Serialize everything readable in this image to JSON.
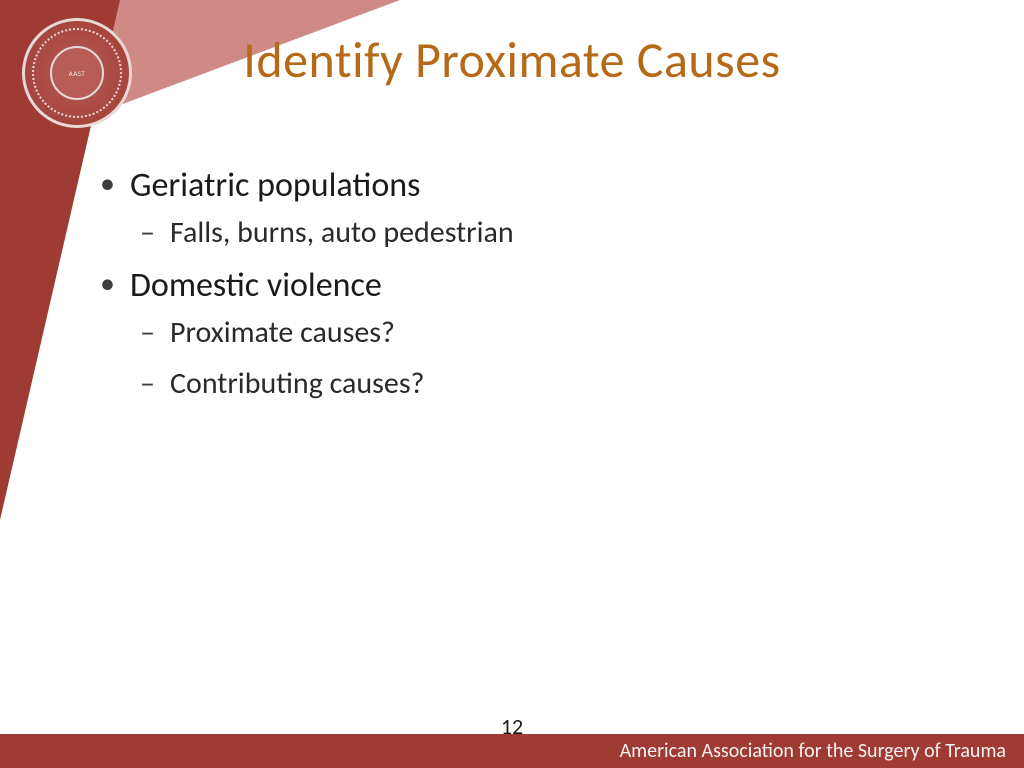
{
  "colors": {
    "background": "#ffffff",
    "title_color": "#b66a18",
    "body_text": "#1a1a1a",
    "bullet_color": "#3d3d3d",
    "triangle_light": "#cf8a85",
    "triangle_dark": "#9f3b33",
    "footer_bg": "#9f3b33",
    "footer_text": "#f6f1ef",
    "seal_border": "#e8d9d6",
    "seal_fill": "#b85d55"
  },
  "typography": {
    "title_fontsize": 50,
    "lvl1_fontsize": 34,
    "lvl2_fontsize": 30,
    "footer_fontsize": 20,
    "pagenum_fontsize": 22,
    "font_family": "Calibri"
  },
  "title": "Identify Proximate Causes",
  "bullets": [
    {
      "text": "Geriatric populations",
      "sub": [
        "Falls, burns, auto pedestrian"
      ]
    },
    {
      "text": "Domestic violence",
      "sub": [
        "Proximate causes?",
        "Contributing causes?"
      ]
    }
  ],
  "footer": "American Association for the Surgery of Trauma",
  "page_number": "12",
  "seal_label": "AAST"
}
